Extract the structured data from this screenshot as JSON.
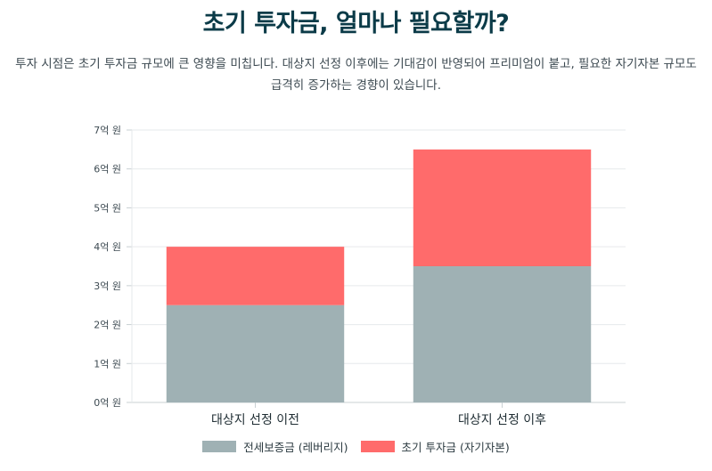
{
  "header": {
    "title": "초기 투자금, 얼마나 필요할까?",
    "description": "투자 시점은 초기 투자금 규모에 큰 영향을 미칩니다. 대상지 선정 이후에는 기대감이 반영되어 프리미엄이 붙고, 필요한 자기자본 규모도 급격히 증가하는 경향이 있습니다."
  },
  "chart_data": {
    "type": "bar",
    "stacked": true,
    "categories": [
      "대상지 선정 이전",
      "대상지 선정 이후"
    ],
    "series": [
      {
        "name": "전세보증금 (레버리지)",
        "values": [
          2.5,
          3.5
        ],
        "color": "#9fb1b4"
      },
      {
        "name": "초기 투자금 (자기자본)",
        "values": [
          1.5,
          3.0
        ],
        "color": "#ff6b6b"
      }
    ],
    "ylim": [
      0,
      7
    ],
    "yticks": [
      0,
      1,
      2,
      3,
      4,
      5,
      6,
      7
    ],
    "ytick_labels": [
      "0억 원",
      "1억 원",
      "2억 원",
      "3억 원",
      "4억 원",
      "5억 원",
      "6억 원",
      "7억 원"
    ],
    "grid": true,
    "legend_position": "bottom"
  }
}
